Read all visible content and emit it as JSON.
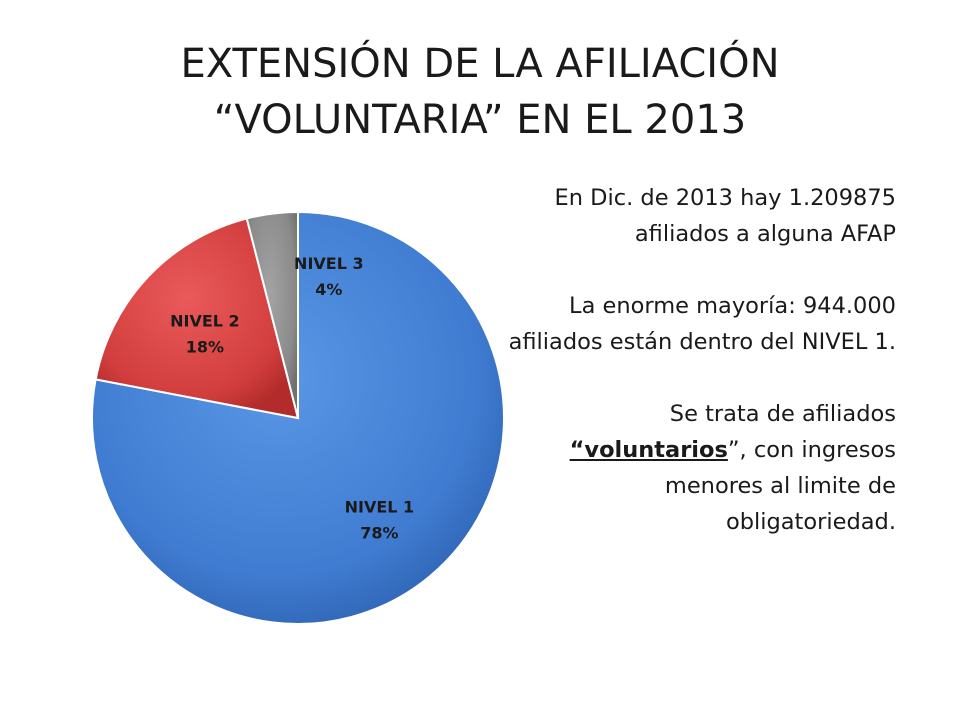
{
  "title": {
    "line1": "EXTENSIÓN DE LA AFILIACIÓN",
    "line2": "“VOLUNTARIA” EN EL 2013"
  },
  "chart_data": {
    "type": "pie",
    "slices": [
      {
        "label": "NIVEL 1",
        "value": 78,
        "value_label": "78%",
        "color": "#4a86d8"
      },
      {
        "label": "NIVEL 2",
        "value": 18,
        "value_label": "18%",
        "color": "#d94444"
      },
      {
        "label": "NIVEL 3",
        "value": 4,
        "value_label": "4%",
        "color": "#8c8c8c"
      }
    ],
    "start_angle": "12 o'clock",
    "direction": "clockwise",
    "slice_order": [
      "NIVEL 1",
      "NIVEL 2",
      "NIVEL 3"
    ],
    "legend": "none",
    "data_labels": "inside"
  },
  "body": {
    "p1": "En Dic. de 2013 hay 1.209875 afiliados a alguna AFAP",
    "p2": "La enorme mayoría: 944.000 afiliados están dentro del NIVEL 1.",
    "p3_before": "Se trata de afiliados ",
    "p3_emphasis": "“voluntarios",
    "p3_after": "”, con ingresos menores al limite de obligatoriedad."
  }
}
